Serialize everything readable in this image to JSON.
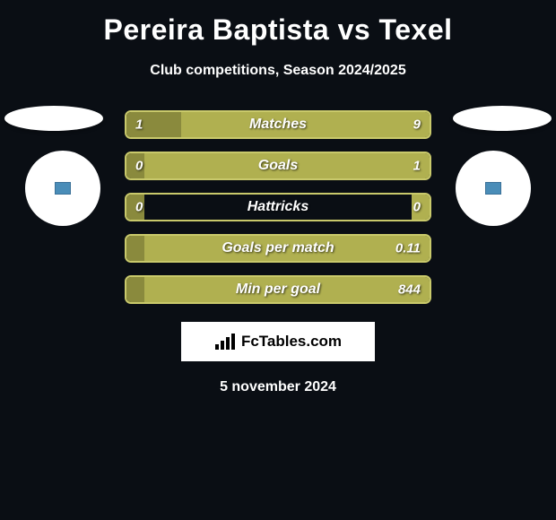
{
  "title": "Pereira Baptista vs Texel",
  "subtitle": "Club competitions, Season 2024/2025",
  "date": "5 november 2024",
  "branding_text": "FcTables.com",
  "colors": {
    "background": "#0a0e14",
    "left_fill": "#8a8a3d",
    "right_fill": "#b0b050",
    "bar_border": "#c9c96b",
    "ellipse": "#ffffff",
    "circle": "#ffffff",
    "accent_square": "#4a8db8",
    "text": "#ffffff"
  },
  "bars": [
    {
      "label": "Matches",
      "left_value": "1",
      "right_value": "9",
      "left_pct": 18,
      "right_pct": 82
    },
    {
      "label": "Goals",
      "left_value": "0",
      "right_value": "1",
      "left_pct": 6,
      "right_pct": 94
    },
    {
      "label": "Hattricks",
      "left_value": "0",
      "right_value": "0",
      "left_pct": 6,
      "right_pct": 6
    },
    {
      "label": "Goals per match",
      "left_value": "",
      "right_value": "0.11",
      "left_pct": 6,
      "right_pct": 94
    },
    {
      "label": "Min per goal",
      "left_value": "",
      "right_value": "844",
      "left_pct": 6,
      "right_pct": 94
    }
  ]
}
